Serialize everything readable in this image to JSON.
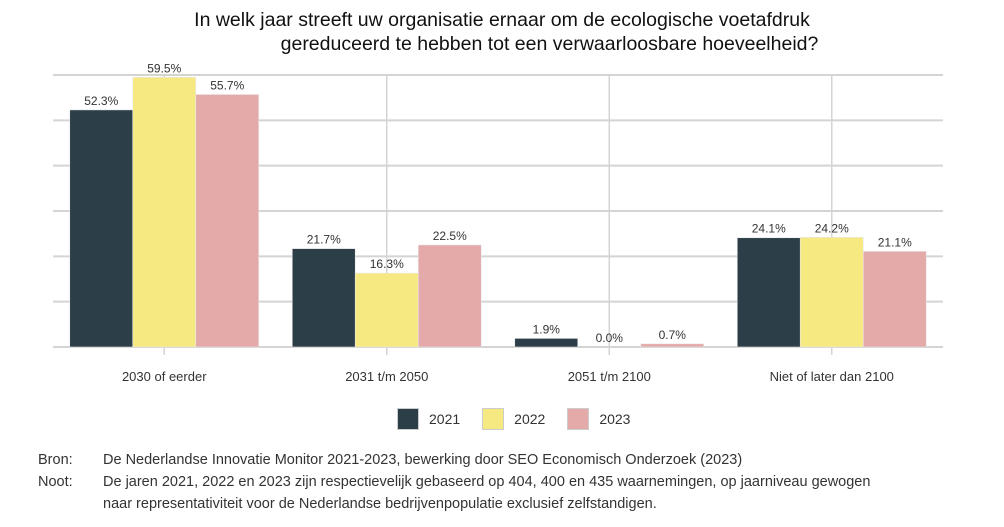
{
  "chart_data": {
    "type": "bar",
    "title": [
      "In welk jaar streeft uw organisatie ernaar om de ecologische voetafdruk",
      "gereduceerd te hebben tot een verwaarloosbare hoeveelheid?"
    ],
    "categories": [
      "2030 of eerder",
      "2031 t/m 2050",
      "2051 t/m 2100",
      "Niet of later dan 2100"
    ],
    "series": [
      {
        "name": "2021",
        "color": "#2c3e47",
        "values": [
          52.3,
          21.7,
          1.9,
          24.1
        ],
        "labels": [
          "52.3%",
          "21.7%",
          "1.9%",
          "24.1%"
        ]
      },
      {
        "name": "2022",
        "color": "#f7e982",
        "values": [
          59.5,
          16.3,
          0.0,
          24.2
        ],
        "labels": [
          "59.5%",
          "16.3%",
          "0.0%",
          "24.2%"
        ]
      },
      {
        "name": "2023",
        "color": "#e4a9a9",
        "values": [
          55.7,
          22.5,
          0.7,
          21.1
        ],
        "labels": [
          "55.7%",
          "22.5%",
          "0.7%",
          "21.1%"
        ]
      }
    ],
    "ylim": [
      0,
      60
    ],
    "y_gridlines": [
      0,
      10,
      20,
      30,
      40,
      50,
      60
    ],
    "y_tick_labels_shown": false,
    "grid": true,
    "legend": "bottom"
  },
  "footer": {
    "source_key": "Bron:",
    "source_text": "De Nederlandse Innovatie Monitor 2021-2023, bewerking door SEO Economisch Onderzoek (2023)",
    "note_key": "Noot:",
    "note_line1": "De jaren 2021, 2022 en 2023 zijn respectievelijk gebaseerd op 404, 400 en 435 waarnemingen, op jaarniveau gewogen",
    "note_line2": "naar representativiteit voor de Nederlandse bedrijvenpopulatie exclusief zelfstandigen."
  }
}
